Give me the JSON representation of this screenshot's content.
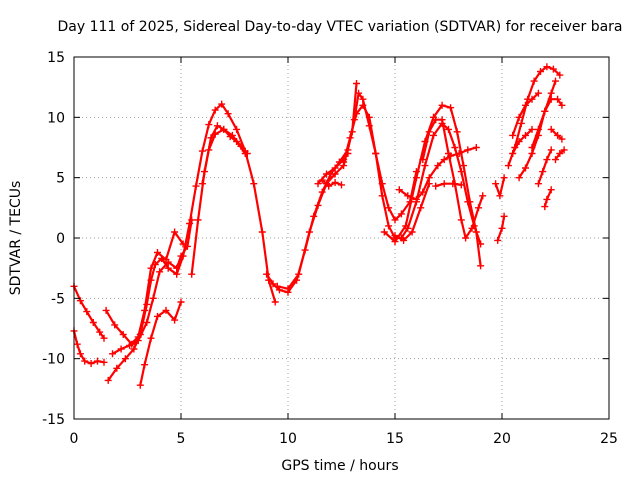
{
  "chart_data": {
    "type": "scatter",
    "marker": "plus",
    "color": "#ff0000",
    "title": "Day 111 of 2025, Sidereal Day-to-day VTEC variation (SDTVAR) for receiver bara",
    "xlabel": "GPS time / hours",
    "ylabel": "SDTVAR / TECUs",
    "xlim": [
      0,
      25
    ],
    "ylim": [
      -15,
      15
    ],
    "xticks": [
      0,
      5,
      10,
      15,
      20,
      25
    ],
    "yticks": [
      -15,
      -10,
      -5,
      0,
      5,
      10,
      15
    ],
    "grid": true,
    "series": [
      {
        "name": "track-1",
        "points": [
          [
            0.0,
            -4.0
          ],
          [
            0.3,
            -5.2
          ],
          [
            0.6,
            -6.1
          ],
          [
            0.9,
            -7.0
          ],
          [
            1.2,
            -7.8
          ],
          [
            1.4,
            -8.3
          ]
        ]
      },
      {
        "name": "track-2",
        "points": [
          [
            0.0,
            -7.7
          ],
          [
            0.15,
            -8.8
          ],
          [
            0.3,
            -9.6
          ],
          [
            0.5,
            -10.2
          ],
          [
            0.8,
            -10.4
          ],
          [
            1.1,
            -10.2
          ],
          [
            1.4,
            -10.3
          ]
        ]
      },
      {
        "name": "track-3",
        "points": [
          [
            1.6,
            -11.8
          ],
          [
            2.0,
            -10.8
          ],
          [
            2.4,
            -10.0
          ],
          [
            2.8,
            -9.2
          ],
          [
            3.1,
            -8.0
          ],
          [
            3.4,
            -5.5
          ],
          [
            3.6,
            -3.5
          ],
          [
            3.8,
            -2.2
          ],
          [
            4.1,
            -1.7
          ],
          [
            4.4,
            -2.5
          ],
          [
            4.8,
            -3.0
          ],
          [
            5.1,
            -1.5
          ],
          [
            5.4,
            1.2
          ],
          [
            5.7,
            4.3
          ],
          [
            6.0,
            7.2
          ],
          [
            6.3,
            9.4
          ],
          [
            6.6,
            10.6
          ],
          [
            6.9,
            11.1
          ],
          [
            7.2,
            10.3
          ],
          [
            7.6,
            9.0
          ],
          [
            8.0,
            7.2
          ],
          [
            8.4,
            4.5
          ],
          [
            8.8,
            0.5
          ],
          [
            9.1,
            -3.5
          ],
          [
            9.4,
            -5.3
          ]
        ]
      },
      {
        "name": "track-4",
        "points": [
          [
            3.1,
            -12.2
          ],
          [
            3.3,
            -10.5
          ],
          [
            3.6,
            -8.3
          ],
          [
            3.9,
            -6.5
          ],
          [
            4.3,
            -6.0
          ],
          [
            4.7,
            -6.8
          ],
          [
            5.0,
            -5.3
          ]
        ]
      },
      {
        "name": "track-5",
        "points": [
          [
            1.5,
            -6.0
          ],
          [
            1.9,
            -7.2
          ],
          [
            2.3,
            -8.0
          ],
          [
            2.7,
            -8.8
          ],
          [
            3.0,
            -8.5
          ],
          [
            3.4,
            -7.0
          ],
          [
            3.7,
            -5.0
          ],
          [
            4.0,
            -2.8
          ],
          [
            4.4,
            -2.0
          ],
          [
            4.8,
            -2.5
          ],
          [
            5.0,
            -1.5
          ],
          [
            5.3,
            -0.7
          ],
          [
            5.5,
            1.5
          ]
        ]
      },
      {
        "name": "track-6",
        "points": [
          [
            1.8,
            -9.6
          ],
          [
            2.2,
            -9.2
          ],
          [
            2.6,
            -8.9
          ],
          [
            3.0,
            -8.2
          ],
          [
            3.3,
            -6.0
          ],
          [
            3.6,
            -2.5
          ],
          [
            3.9,
            -1.2
          ],
          [
            4.3,
            -1.8
          ],
          [
            4.7,
            0.5
          ],
          [
            5.1,
            -0.5
          ]
        ]
      },
      {
        "name": "track-7",
        "points": [
          [
            5.5,
            -3.0
          ],
          [
            5.8,
            1.5
          ],
          [
            6.1,
            5.5
          ],
          [
            6.4,
            8.3
          ],
          [
            6.7,
            9.3
          ],
          [
            7.0,
            9.0
          ],
          [
            7.3,
            8.4
          ],
          [
            7.6,
            8.0
          ],
          [
            8.0,
            7.0
          ]
        ]
      },
      {
        "name": "track-8",
        "points": [
          [
            6.0,
            4.5
          ],
          [
            6.3,
            7.3
          ],
          [
            6.6,
            8.6
          ],
          [
            7.0,
            9.0
          ],
          [
            7.4,
            8.5
          ],
          [
            7.8,
            7.6
          ],
          [
            8.1,
            7.0
          ]
        ]
      },
      {
        "name": "track-9",
        "points": [
          [
            9.0,
            -3.0
          ],
          [
            9.3,
            -3.8
          ],
          [
            9.6,
            -4.3
          ],
          [
            10.0,
            -4.5
          ],
          [
            10.4,
            -3.5
          ],
          [
            10.8,
            -1.0
          ],
          [
            11.2,
            1.8
          ],
          [
            11.6,
            3.8
          ],
          [
            12.0,
            5.3
          ],
          [
            12.4,
            6.3
          ],
          [
            12.8,
            7.3
          ],
          [
            13.1,
            9.8
          ],
          [
            13.3,
            12.0
          ],
          [
            13.5,
            11.5
          ],
          [
            13.8,
            9.3
          ],
          [
            14.1,
            7.0
          ],
          [
            14.4,
            4.5
          ],
          [
            14.7,
            2.5
          ],
          [
            15.0,
            1.5
          ],
          [
            15.3,
            2.0
          ],
          [
            15.7,
            3.0
          ],
          [
            16.0,
            5.5
          ]
        ]
      },
      {
        "name": "track-10",
        "points": [
          [
            9.5,
            -4.0
          ],
          [
            10.0,
            -4.2
          ],
          [
            10.5,
            -3.0
          ],
          [
            11.0,
            0.5
          ],
          [
            11.4,
            2.7
          ],
          [
            11.8,
            4.5
          ],
          [
            12.2,
            5.3
          ],
          [
            12.6,
            6.0
          ],
          [
            13.0,
            8.8
          ],
          [
            13.2,
            12.8
          ]
        ]
      },
      {
        "name": "track-11",
        "points": [
          [
            11.4,
            4.5
          ],
          [
            11.8,
            5.3
          ],
          [
            12.2,
            5.8
          ],
          [
            12.6,
            6.5
          ],
          [
            12.8,
            7.0
          ]
        ]
      },
      {
        "name": "track-12",
        "points": [
          [
            11.6,
            4.8
          ],
          [
            11.9,
            4.3
          ],
          [
            12.2,
            4.6
          ],
          [
            12.5,
            4.4
          ]
        ]
      },
      {
        "name": "track-13",
        "points": [
          [
            12.6,
            6.3
          ],
          [
            12.9,
            8.3
          ],
          [
            13.2,
            10.3
          ],
          [
            13.5,
            11.0
          ],
          [
            13.8,
            10.0
          ],
          [
            14.1,
            7.0
          ],
          [
            14.4,
            3.5
          ],
          [
            14.7,
            1.0
          ],
          [
            15.0,
            0.0
          ],
          [
            15.3,
            0.0
          ],
          [
            15.6,
            0.8
          ],
          [
            16.0,
            3.0
          ],
          [
            16.4,
            6.0
          ],
          [
            16.8,
            8.5
          ],
          [
            17.2,
            9.5
          ],
          [
            17.5,
            9.0
          ],
          [
            17.8,
            7.5
          ],
          [
            18.1,
            5.5
          ],
          [
            18.4,
            3.0
          ],
          [
            18.7,
            1.0
          ],
          [
            19.0,
            -0.5
          ]
        ]
      },
      {
        "name": "track-14",
        "points": [
          [
            14.5,
            0.5
          ],
          [
            15.0,
            -0.3
          ],
          [
            15.5,
            1.0
          ],
          [
            16.0,
            5.0
          ],
          [
            16.4,
            8.0
          ],
          [
            16.8,
            10.0
          ],
          [
            17.2,
            11.0
          ],
          [
            17.6,
            10.8
          ],
          [
            17.9,
            8.8
          ],
          [
            18.2,
            6.0
          ],
          [
            18.5,
            3.0
          ],
          [
            18.8,
            0.5
          ],
          [
            19.0,
            -2.3
          ]
        ]
      },
      {
        "name": "track-15",
        "points": [
          [
            15.2,
            4.0
          ],
          [
            15.6,
            3.5
          ],
          [
            16.0,
            3.2
          ],
          [
            16.3,
            3.8
          ],
          [
            16.6,
            5.0
          ],
          [
            17.0,
            6.0
          ],
          [
            17.3,
            6.5
          ],
          [
            17.6,
            6.8
          ],
          [
            18.0,
            7.0
          ],
          [
            18.4,
            7.3
          ],
          [
            18.8,
            7.5
          ]
        ]
      },
      {
        "name": "track-16",
        "points": [
          [
            16.3,
            6.5
          ],
          [
            16.6,
            8.8
          ],
          [
            16.9,
            9.8
          ],
          [
            17.2,
            9.8
          ],
          [
            17.5,
            7.0
          ],
          [
            17.8,
            4.5
          ],
          [
            18.1,
            1.5
          ],
          [
            18.3,
            0.0
          ],
          [
            18.6,
            0.8
          ],
          [
            18.9,
            2.5
          ],
          [
            19.1,
            3.5
          ]
        ]
      },
      {
        "name": "track-17",
        "points": [
          [
            16.9,
            4.3
          ],
          [
            17.3,
            4.5
          ],
          [
            17.7,
            4.5
          ],
          [
            18.1,
            4.4
          ]
        ]
      },
      {
        "name": "track-18",
        "points": [
          [
            15.0,
            0.2
          ],
          [
            15.4,
            -0.2
          ],
          [
            15.8,
            0.5
          ],
          [
            16.2,
            2.5
          ],
          [
            16.6,
            4.5
          ]
        ]
      },
      {
        "name": "track-19",
        "points": [
          [
            19.7,
            4.5
          ],
          [
            19.9,
            3.5
          ],
          [
            20.1,
            5.0
          ]
        ]
      },
      {
        "name": "track-20",
        "points": [
          [
            19.8,
            -0.2
          ],
          [
            20.0,
            0.8
          ],
          [
            20.1,
            1.8
          ]
        ]
      },
      {
        "name": "track-21",
        "points": [
          [
            20.3,
            6.0
          ],
          [
            20.6,
            7.5
          ],
          [
            20.9,
            9.5
          ],
          [
            21.2,
            11.5
          ],
          [
            21.5,
            13.0
          ],
          [
            21.8,
            13.8
          ],
          [
            22.1,
            14.2
          ],
          [
            22.4,
            14.0
          ],
          [
            22.7,
            13.5
          ]
        ]
      },
      {
        "name": "track-22",
        "points": [
          [
            20.8,
            5.0
          ],
          [
            21.1,
            5.8
          ],
          [
            21.4,
            7.0
          ],
          [
            21.7,
            8.5
          ],
          [
            22.0,
            10.5
          ],
          [
            22.3,
            12.0
          ],
          [
            22.5,
            13.0
          ]
        ]
      },
      {
        "name": "track-23",
        "points": [
          [
            20.5,
            8.5
          ],
          [
            20.8,
            10.0
          ],
          [
            21.1,
            11.0
          ],
          [
            21.4,
            11.5
          ],
          [
            21.7,
            12.0
          ]
        ]
      },
      {
        "name": "track-24",
        "points": [
          [
            20.5,
            7.0
          ],
          [
            20.8,
            8.0
          ],
          [
            21.1,
            8.5
          ],
          [
            21.4,
            9.0
          ]
        ]
      },
      {
        "name": "track-25",
        "points": [
          [
            21.7,
            4.5
          ],
          [
            21.9,
            5.5
          ],
          [
            22.1,
            6.5
          ],
          [
            22.3,
            7.3
          ]
        ]
      },
      {
        "name": "track-26",
        "points": [
          [
            21.4,
            7.5
          ],
          [
            21.7,
            9.0
          ],
          [
            22.0,
            10.5
          ],
          [
            22.3,
            11.5
          ],
          [
            22.6,
            11.5
          ],
          [
            22.8,
            11.0
          ]
        ]
      },
      {
        "name": "track-27",
        "points": [
          [
            22.3,
            4.0
          ],
          [
            22.1,
            3.2
          ],
          [
            22.0,
            2.6
          ]
        ]
      },
      {
        "name": "track-28",
        "points": [
          [
            22.5,
            6.5
          ],
          [
            22.7,
            7.0
          ],
          [
            22.9,
            7.3
          ]
        ]
      },
      {
        "name": "track-29",
        "points": [
          [
            22.3,
            9.0
          ],
          [
            22.6,
            8.5
          ],
          [
            22.8,
            8.2
          ]
        ]
      }
    ]
  }
}
